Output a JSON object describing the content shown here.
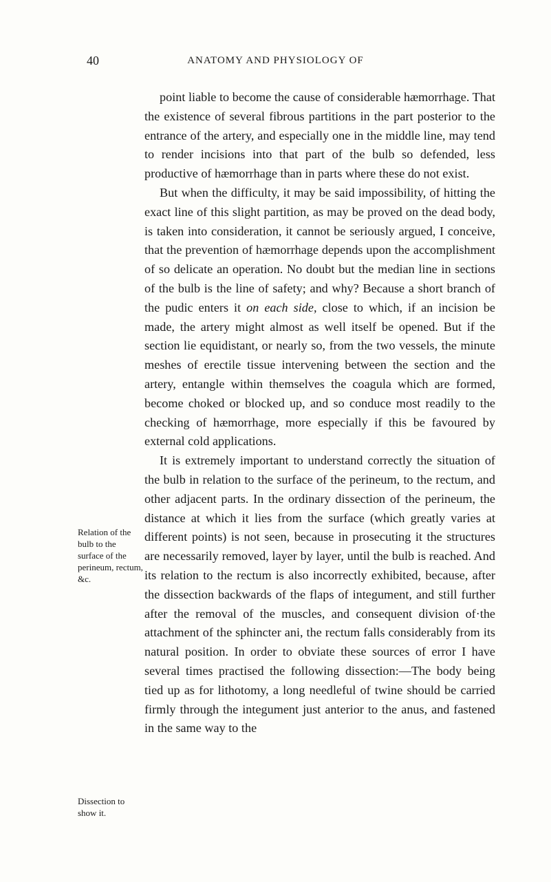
{
  "page_number": "40",
  "running_head": "ANATOMY AND PHYSIOLOGY OF",
  "paragraphs": {
    "p1": "point liable to become the cause of considerable hæmorrhage. That the existence of several fibrous partitions in the part posterior to the entrance of the artery, and especially one in the middle line, may tend to render incisions into that part of the bulb so defended, less productive of hæmorrhage than in parts where these do not exist.",
    "p2a": "But when the difficulty, it may be said impossibility, of hit­ting the exact line of this slight partition, as may be proved on the dead body, is taken into consideration, it cannot be se­riously argued, I conceive, that the prevention of hæmorrhage depends upon the accomplishment of so delicate an operation. No doubt but the median line in sections of the bulb is the line of safety; and why?  Because a short branch of the pudic enters it ",
    "p2_em": "on each side,",
    "p2b": " close to which, if an incision be made, the artery might almost as well itself be opened.  But if the section lie equidistant, or nearly so, from the two ves­sels, the minute meshes of erectile tissue intervening between the section and the artery, entangle within themselves the coagula which are formed, become choked or blocked up, and so conduce most readily to the checking of hæmorrhage, more especially if this be favoured by external cold applications.",
    "p3": "It is extremely important to understand correctly the situation of the bulb in relation to the surface of the perineum, to the rectum, and other adjacent parts.  In the ordinary dissection of the perineum, the distance at which it lies from the surface (which greatly varies at different points) is not seen, because in prosecuting it the structures are necessarily removed, layer by layer, until the bulb is reached.  And its relation to the rectum is also incorrectly exhibited, because, after the dissection backwards of the flaps of integument, and still further after the removal of the muscles, and consequent division of·the attachment of the sphincter ani, the rectum falls considerably from its natural position.  In order to obviate these sources of error I have several times practised the following dissection:—The body being tied up as for lithotomy, a long needleful of twine should be carried firmly through the integument just anterior to the anus, and fastened in the same way to the"
  },
  "marginalia": {
    "m1": "Relation of the bulb to the surface of the peri­neum, rec­tum, &c.",
    "m2": "Dissection to show it."
  }
}
